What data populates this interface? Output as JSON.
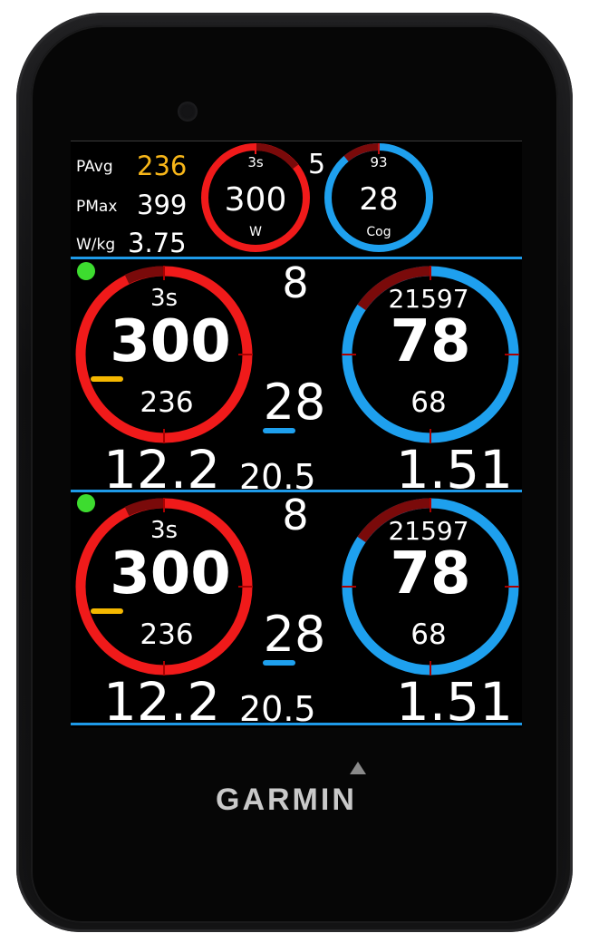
{
  "brand": "GARMIN",
  "top": {
    "pavg_label": "PAvg",
    "pavg_value": "236",
    "pmax_label": "PMax",
    "pmax_value": "399",
    "wkg_label": "W/kg",
    "wkg_value": "3.75",
    "power_gauge": {
      "top": "3s",
      "value": "300",
      "unit": "W"
    },
    "gear": "5",
    "cadence_gauge": {
      "top": "93",
      "value": "28",
      "unit": "Cog"
    }
  },
  "fields": [
    {
      "power": {
        "top": "3s",
        "value": "300",
        "bottom": "236"
      },
      "gear": "8",
      "cog": "28",
      "cadence": {
        "top": "21597",
        "value": "78",
        "bottom": "68"
      },
      "bottom_left": "12.2",
      "bottom_mid": "20.5",
      "bottom_right": "1.51"
    },
    {
      "power": {
        "top": "3s",
        "value": "300",
        "bottom": "236"
      },
      "gear": "8",
      "cog": "28",
      "cadence": {
        "top": "21597",
        "value": "78",
        "bottom": "68"
      },
      "bottom_left": "12.2",
      "bottom_mid": "20.5",
      "bottom_right": "1.51"
    }
  ],
  "colors": {
    "power_ring": "#f01a1a",
    "cadence_ring": "#1ea0ee",
    "separator": "#1e9ae8",
    "pavg_value": "#f7b619",
    "power_marker": "#f5b800",
    "status_dot": "#3ddc2f"
  },
  "icons": {
    "logo_mark": "triangle-icon"
  }
}
